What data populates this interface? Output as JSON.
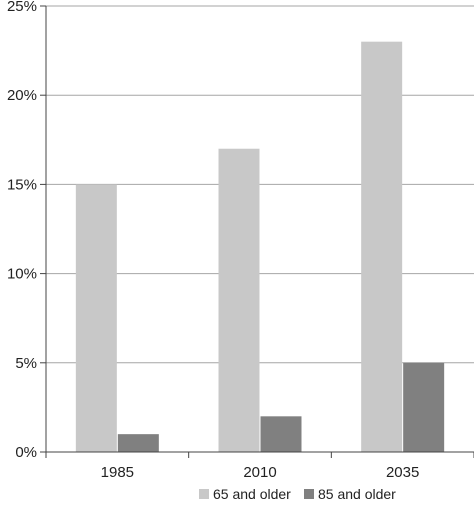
{
  "chart_data": {
    "type": "bar",
    "categories": [
      "1985",
      "2010",
      "2035"
    ],
    "series": [
      {
        "name": "65 and older",
        "values": [
          15,
          17,
          23
        ],
        "color": "#c8c8c8"
      },
      {
        "name": "85 and older",
        "values": [
          1,
          2,
          5
        ],
        "color": "#808080"
      }
    ],
    "ylim": [
      0,
      25
    ],
    "yticks": [
      0,
      5,
      10,
      15,
      20,
      25
    ],
    "ytick_labels": [
      "0%",
      "5%",
      "10%",
      "15%",
      "20%",
      "25%"
    ],
    "grid": true,
    "legend": "bottom",
    "title": "",
    "xlabel": "",
    "ylabel": ""
  }
}
